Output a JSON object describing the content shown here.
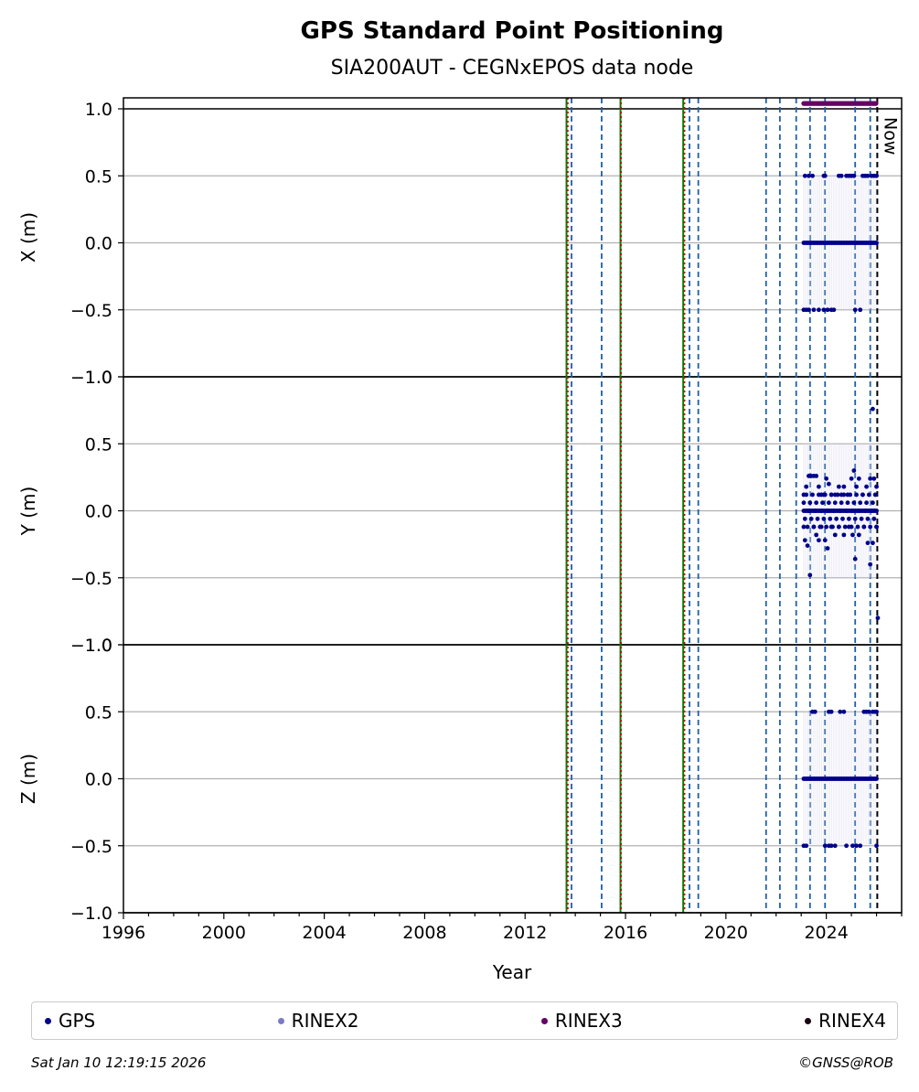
{
  "chart_data": {
    "type": "scatter",
    "title": "GPS Standard Point Positioning",
    "subtitle": "SIA200AUT - CEGNxEPOS data node",
    "xlabel": "Year",
    "xlim": [
      1996,
      2027
    ],
    "xticks": [
      1996,
      2000,
      2004,
      2008,
      2012,
      2016,
      2020,
      2024
    ],
    "xtick_labels": [
      "1996",
      "2000",
      "2004",
      "2008",
      "2012",
      "2016",
      "2020",
      "2024"
    ],
    "panels": [
      {
        "ylabel": "X (m)",
        "ylim": [
          -1.0,
          1.0
        ],
        "yticks": [
          -1.0,
          -0.5,
          0.0,
          0.5,
          1.0
        ],
        "ytick_labels": [
          "−1.0",
          "−0.5",
          "0.0",
          "0.5",
          "1.0"
        ]
      },
      {
        "ylabel": "Y (m)",
        "ylim": [
          -1.0,
          1.0
        ],
        "yticks": [
          -1.0,
          -0.5,
          0.0,
          0.5,
          1.0
        ],
        "ytick_labels": [
          "−1.0",
          "−0.5",
          "0.0",
          "0.5",
          "1.0"
        ]
      },
      {
        "ylabel": "Z (m)",
        "ylim": [
          -1.0,
          1.0
        ],
        "yticks": [
          -1.0,
          -0.5,
          0.0,
          0.5,
          1.0
        ],
        "ytick_labels": [
          "−1.0",
          "−0.5",
          "0.0",
          "0.5",
          "1.0"
        ]
      }
    ],
    "grid": "horizontal",
    "colors": {
      "gps": "#00008b",
      "rinex2": "#7b7bc4",
      "rinex3": "#660066",
      "rinex4": "#1a0010",
      "event_line": "#1f5fa8",
      "antenna_line": "#008000",
      "receiver_line": "#cc0000",
      "now_line": "#000000"
    },
    "event_lines_dashed_blue": [
      2013.85,
      2015.05,
      2018.55,
      2018.9,
      2021.6,
      2022.15,
      2022.8,
      2023.35,
      2023.95,
      2025.15,
      2025.75
    ],
    "event_lines_solid_green": [
      2013.65,
      2015.8,
      2018.3
    ],
    "event_lines_dotted_red": [
      2013.7,
      2015.82,
      2018.35
    ],
    "now": {
      "label": "Now",
      "x": 2026.03
    },
    "rinex3_band": {
      "x_start": 2023.1,
      "x_end": 2026.0,
      "y": 1.04
    },
    "series": [
      {
        "name": "GPS",
        "panel": "X",
        "points": [
          [
            2023.15,
            0.5
          ],
          [
            2023.3,
            0.5
          ],
          [
            2023.45,
            0.5
          ],
          [
            2023.9,
            0.5
          ],
          [
            2023.95,
            0.5
          ],
          [
            2024.5,
            0.5
          ],
          [
            2024.6,
            0.5
          ],
          [
            2024.8,
            0.5
          ],
          [
            2024.9,
            0.5
          ],
          [
            2025.0,
            0.5
          ],
          [
            2025.1,
            0.5
          ],
          [
            2025.45,
            0.5
          ],
          [
            2025.55,
            0.5
          ],
          [
            2025.65,
            0.5
          ],
          [
            2025.8,
            0.5
          ],
          [
            2025.9,
            0.5
          ],
          [
            2026.0,
            0.5
          ],
          [
            2023.1,
            -0.5
          ],
          [
            2023.2,
            -0.5
          ],
          [
            2023.3,
            -0.5
          ],
          [
            2023.5,
            -0.5
          ],
          [
            2023.7,
            -0.5
          ],
          [
            2023.9,
            -0.5
          ],
          [
            2024.05,
            -0.5
          ],
          [
            2024.2,
            -0.5
          ],
          [
            2024.3,
            -0.5
          ],
          [
            2025.15,
            -0.5
          ],
          [
            2025.35,
            -0.5
          ]
        ]
      },
      {
        "name": "GPS",
        "panel": "Y",
        "points": [
          [
            2023.1,
            0.12
          ],
          [
            2023.2,
            0.18
          ],
          [
            2023.3,
            0.26
          ],
          [
            2023.4,
            0.26
          ],
          [
            2023.5,
            0.26
          ],
          [
            2023.6,
            0.26
          ],
          [
            2023.7,
            0.18
          ],
          [
            2023.8,
            0.12
          ],
          [
            2023.9,
            0.12
          ],
          [
            2024.0,
            0.24
          ],
          [
            2024.1,
            0.2
          ],
          [
            2024.2,
            0.12
          ],
          [
            2024.35,
            0.12
          ],
          [
            2024.5,
            0.18
          ],
          [
            2024.6,
            0.12
          ],
          [
            2024.7,
            0.18
          ],
          [
            2024.85,
            0.12
          ],
          [
            2025.0,
            0.24
          ],
          [
            2025.1,
            0.3
          ],
          [
            2025.2,
            0.18
          ],
          [
            2025.3,
            0.24
          ],
          [
            2025.45,
            0.12
          ],
          [
            2025.6,
            0.18
          ],
          [
            2025.75,
            0.24
          ],
          [
            2025.9,
            0.24
          ],
          [
            2026.0,
            0.18
          ],
          [
            2023.1,
            -0.12
          ],
          [
            2023.15,
            -0.22
          ],
          [
            2023.25,
            -0.26
          ],
          [
            2023.35,
            -0.48
          ],
          [
            2023.5,
            -0.12
          ],
          [
            2023.6,
            -0.18
          ],
          [
            2023.7,
            -0.22
          ],
          [
            2023.8,
            -0.12
          ],
          [
            2023.95,
            -0.22
          ],
          [
            2024.05,
            -0.28
          ],
          [
            2024.2,
            -0.12
          ],
          [
            2024.35,
            -0.18
          ],
          [
            2024.5,
            -0.12
          ],
          [
            2024.7,
            -0.18
          ],
          [
            2024.9,
            -0.12
          ],
          [
            2025.05,
            -0.18
          ],
          [
            2025.15,
            -0.36
          ],
          [
            2025.3,
            -0.18
          ],
          [
            2025.5,
            -0.12
          ],
          [
            2025.65,
            -0.24
          ],
          [
            2025.75,
            -0.4
          ],
          [
            2025.85,
            -0.24
          ],
          [
            2026.0,
            -0.12
          ],
          [
            2025.85,
            0.76
          ],
          [
            2026.05,
            -0.8
          ]
        ]
      },
      {
        "name": "GPS",
        "panel": "Z",
        "points": [
          [
            2023.45,
            0.5
          ],
          [
            2023.55,
            0.5
          ],
          [
            2024.1,
            0.5
          ],
          [
            2024.2,
            0.5
          ],
          [
            2024.55,
            0.5
          ],
          [
            2024.7,
            0.5
          ],
          [
            2025.5,
            0.5
          ],
          [
            2025.6,
            0.5
          ],
          [
            2025.7,
            0.5
          ],
          [
            2025.85,
            0.5
          ],
          [
            2025.95,
            0.5
          ],
          [
            2026.0,
            0.5
          ],
          [
            2023.1,
            -0.5
          ],
          [
            2023.2,
            -0.5
          ],
          [
            2023.95,
            -0.5
          ],
          [
            2024.1,
            -0.5
          ],
          [
            2024.2,
            -0.5
          ],
          [
            2024.35,
            -0.5
          ],
          [
            2024.8,
            -0.5
          ],
          [
            2025.05,
            -0.5
          ],
          [
            2025.2,
            -0.5
          ],
          [
            2025.35,
            -0.5
          ],
          [
            2026.0,
            -0.5
          ]
        ]
      }
    ],
    "zero_band": {
      "x_start": 2023.1,
      "x_end": 2026.0,
      "y": 0.0,
      "panels": [
        "X",
        "Y",
        "Z"
      ]
    },
    "legend": [
      {
        "label": "GPS",
        "color": "#00008b"
      },
      {
        "label": "RINEX2",
        "color": "#7b7bc4"
      },
      {
        "label": "RINEX3",
        "color": "#660066"
      },
      {
        "label": "RINEX4",
        "color": "#1a0010"
      }
    ],
    "legend_position": "bottom"
  },
  "footer": {
    "timestamp": "Sat Jan 10 12:19:15 2026",
    "copyright": "©GNSS@ROB"
  }
}
